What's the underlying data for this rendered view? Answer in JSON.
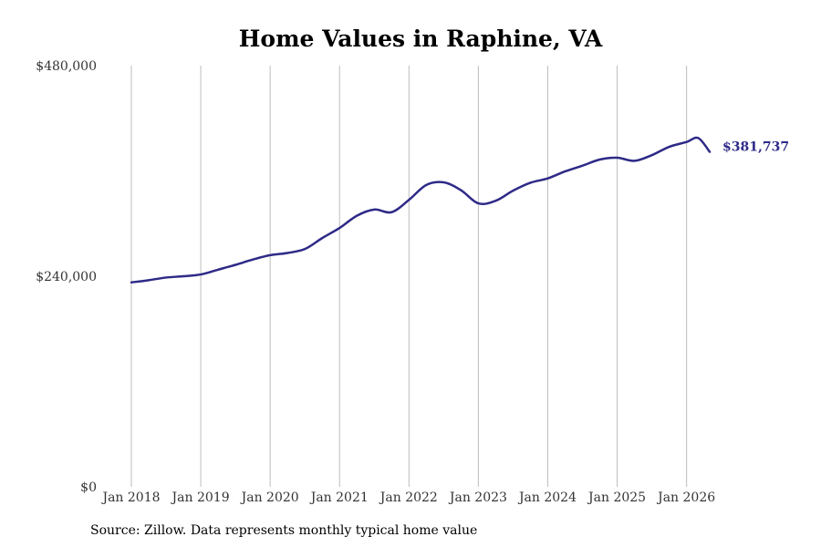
{
  "chart_data": {
    "type": "line",
    "title": "Home Values in Raphine, VA",
    "xlabel": "",
    "ylabel": "",
    "ylim": [
      0,
      480000
    ],
    "y_ticks": [
      "$0",
      "$240,000",
      "$480,000"
    ],
    "y_tick_values": [
      0,
      240000,
      480000
    ],
    "x_ticks": [
      "Jan 2018",
      "Jan 2019",
      "Jan 2020",
      "Jan 2021",
      "Jan 2022",
      "Jan 2023",
      "Jan 2024",
      "Jan 2025",
      "Jan 2026"
    ],
    "xlim": [
      "2018-01",
      "2026-05"
    ],
    "grid": "vertical",
    "line_color": "#2e2a87",
    "end_label": "$381,737",
    "series": [
      {
        "x": [
          "2018-01",
          "2018-04",
          "2018-07",
          "2018-10",
          "2019-01",
          "2019-04",
          "2019-07",
          "2019-10",
          "2020-01",
          "2020-04",
          "2020-07",
          "2020-10",
          "2021-01",
          "2021-04",
          "2021-07",
          "2021-10",
          "2022-01",
          "2022-04",
          "2022-07",
          "2022-10",
          "2023-01",
          "2023-04",
          "2023-07",
          "2023-10",
          "2024-01",
          "2024-04",
          "2024-07",
          "2024-10",
          "2025-01",
          "2025-04",
          "2025-07",
          "2025-10",
          "2026-01",
          "2026-03",
          "2026-05"
        ],
        "values": [
          233000,
          235500,
          238500,
          240000,
          242000,
          247500,
          253000,
          259000,
          264000,
          266500,
          271000,
          283500,
          295000,
          309000,
          316000,
          313000,
          327000,
          344000,
          347000,
          338000,
          323000,
          326000,
          337500,
          346500,
          351500,
          359500,
          366000,
          373000,
          375000,
          371500,
          378000,
          387500,
          393000,
          397500,
          381737
        ]
      }
    ]
  },
  "source_note": "Source: Zillow. Data represents monthly typical home value"
}
